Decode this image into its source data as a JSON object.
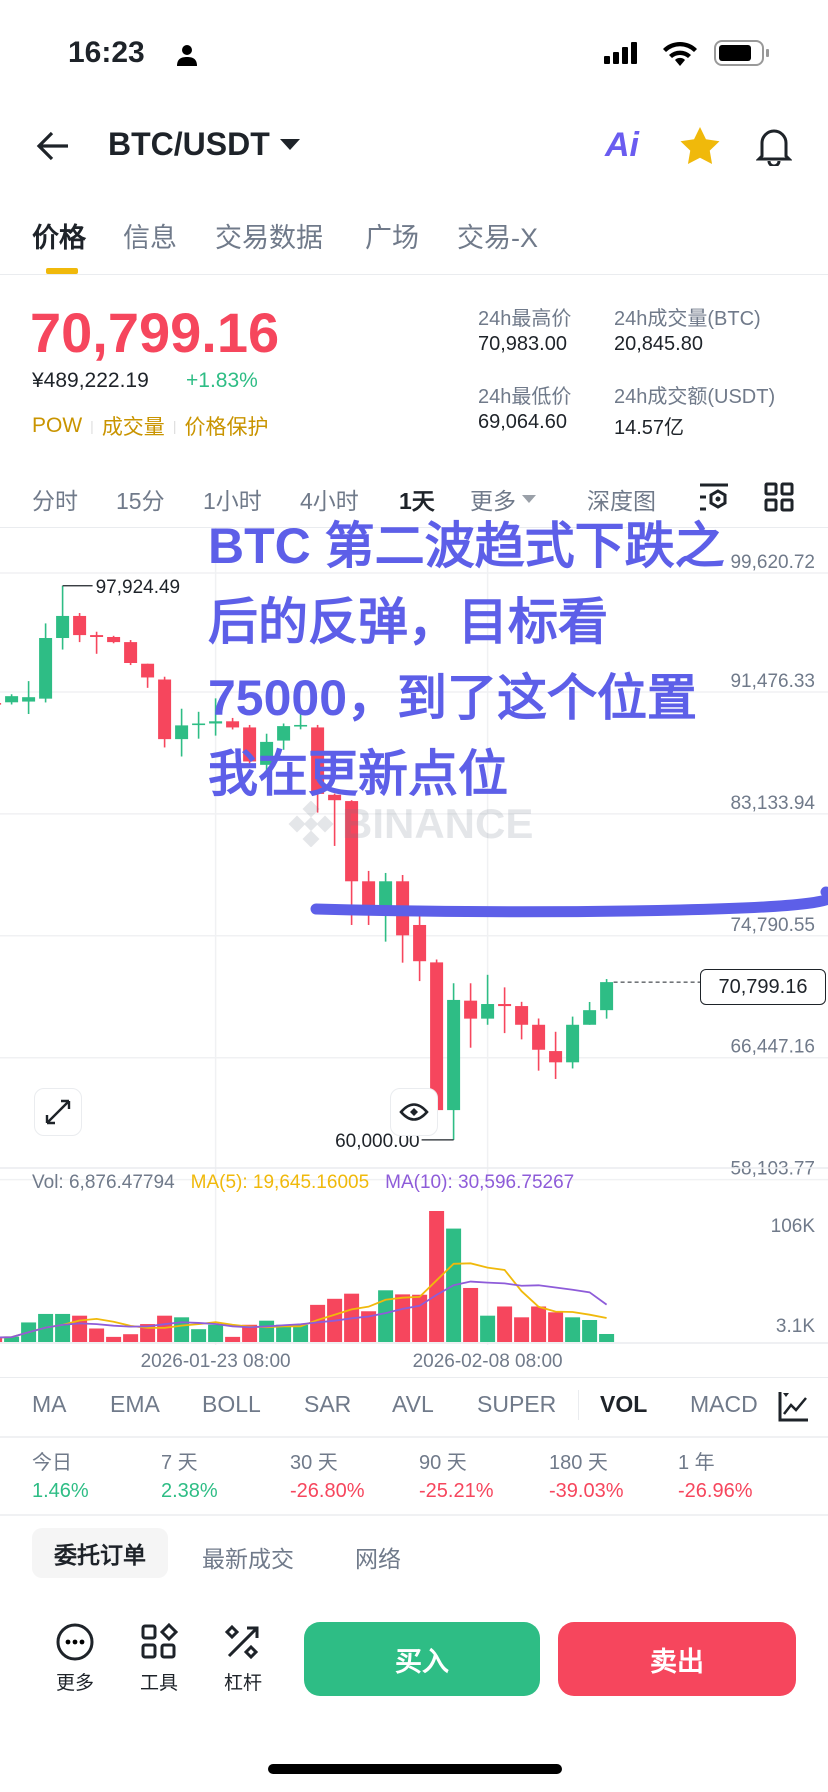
{
  "status_bar": {
    "time": "16:23"
  },
  "header": {
    "pair": "BTC/USDT",
    "ai_label": "Ai"
  },
  "tabs": [
    {
      "label": "价格",
      "active": true
    },
    {
      "label": "信息"
    },
    {
      "label": "交易数据"
    },
    {
      "label": "广场"
    },
    {
      "label": "交易-X"
    }
  ],
  "ticker": {
    "price": "70,799.16",
    "cny_price": "¥489,222.19",
    "change": "+1.83%",
    "tags": [
      "POW",
      "成交量",
      "价格保护"
    ],
    "stats": [
      {
        "label": "24h最高价",
        "value": "70,983.00"
      },
      {
        "label": "24h成交量(BTC)",
        "value": "20,845.80"
      },
      {
        "label": "24h最低价",
        "value": "69,064.60"
      },
      {
        "label": "24h成交额(USDT)",
        "value": "14.57亿"
      }
    ]
  },
  "intervals": [
    {
      "label": "分时"
    },
    {
      "label": "15分"
    },
    {
      "label": "1小时"
    },
    {
      "label": "4小时"
    },
    {
      "label": "1天",
      "active": true
    },
    {
      "label": "更多"
    },
    {
      "label": "深度图"
    }
  ],
  "chart_data": {
    "type": "candlestick",
    "y_axis_labels": [
      "99,620.72",
      "91,476.33",
      "83,133.94",
      "74,790.55",
      "66,447.16",
      "58,103.77"
    ],
    "y_axis_values": [
      99620.72,
      91476.33,
      83133.94,
      74790.55,
      66447.16,
      58103.77
    ],
    "high_marker": "97,924.49",
    "low_marker": "60,000.00",
    "last_price_tag": "70,799.16",
    "watermark": "BINANCE",
    "candles_ohlcv": [
      [
        89900,
        90050,
        89800,
        89850,
        3800
      ],
      [
        89950,
        90500,
        89800,
        90370,
        4600
      ],
      [
        90000,
        91400,
        89150,
        90300,
        16800
      ],
      [
        90200,
        95350,
        89940,
        94350,
        24100
      ],
      [
        94350,
        97924.49,
        93560,
        95860,
        24100
      ],
      [
        95860,
        96060,
        94070,
        94550,
        22600
      ],
      [
        94550,
        94780,
        93270,
        94420,
        11600
      ],
      [
        94420,
        94500,
        93990,
        94070,
        4400
      ],
      [
        94070,
        94210,
        92500,
        92640,
        6700
      ],
      [
        92590,
        92590,
        90940,
        91650,
        15400
      ],
      [
        91510,
        91700,
        86860,
        87430,
        22600
      ],
      [
        87430,
        89510,
        86240,
        88370,
        21200
      ],
      [
        88400,
        89300,
        87460,
        88500,
        11000
      ],
      [
        88500,
        90220,
        87670,
        88650,
        14800
      ],
      [
        88650,
        88880,
        88090,
        88230,
        4400
      ],
      [
        88230,
        88400,
        85500,
        85900,
        14800
      ],
      [
        85670,
        87800,
        85000,
        87240,
        18300
      ],
      [
        87330,
        88500,
        86700,
        88320,
        14800
      ],
      [
        88300,
        89500,
        88100,
        88400,
        14800
      ],
      [
        88230,
        88400,
        82400,
        83680,
        31900
      ],
      [
        83620,
        83700,
        80120,
        83250,
        37100
      ],
      [
        83190,
        83250,
        74710,
        77700,
        41500
      ],
      [
        77700,
        78410,
        74710,
        75990,
        26400
      ],
      [
        75990,
        78270,
        73570,
        77700,
        44400
      ],
      [
        77700,
        78130,
        72130,
        74000,
        40900
      ],
      [
        74710,
        75850,
        70870,
        72230,
        40600
      ],
      [
        72150,
        72350,
        62040,
        62040,
        112500
      ],
      [
        62040,
        70720,
        60000,
        69580,
        97400
      ],
      [
        69530,
        70720,
        66310,
        68300,
        46400
      ],
      [
        68300,
        71300,
        67880,
        69300,
        22600
      ],
      [
        69300,
        70440,
        67310,
        69160,
        30500
      ],
      [
        69160,
        69450,
        66880,
        67880,
        21200
      ],
      [
        67880,
        68310,
        64740,
        66170,
        30500
      ],
      [
        66080,
        67400,
        64170,
        65310,
        25500
      ],
      [
        65310,
        68440,
        64890,
        67880,
        21200
      ],
      [
        67880,
        69440,
        67880,
        68880,
        18900
      ],
      [
        68880,
        71010,
        68300,
        70799.16,
        6876.47794
      ]
    ],
    "x_ticks": [
      {
        "label": "2026-01-23 08:00",
        "candle": 13
      },
      {
        "label": "2026-02-08 08:00",
        "candle": 29
      }
    ],
    "volume": {
      "vol_label": "Vol: 6,876.47794",
      "ma5_label": "MA(5): 19,645.16005",
      "ma10_label": "MA(10): 30,596.75267",
      "axis_labels": [
        "106K",
        "3.1K"
      ],
      "ma5_color": "#F0B90B",
      "ma10_color": "#8E5CD9"
    },
    "colors": {
      "up": "#2EBD85",
      "down": "#F6465D"
    }
  },
  "annotation": {
    "lines": [
      "BTC 第二波趋式下跌之",
      "后的反弹，目标看",
      "75000，到了这个位置",
      "我在更新点位"
    ],
    "color": "#5D5FE8",
    "marked_level": 75000
  },
  "indicators": [
    {
      "label": "MA"
    },
    {
      "label": "EMA"
    },
    {
      "label": "BOLL"
    },
    {
      "label": "SAR"
    },
    {
      "label": "AVL"
    },
    {
      "label": "SUPER"
    },
    {
      "label": "VOL",
      "active": true
    },
    {
      "label": "MACD"
    }
  ],
  "performance": [
    {
      "label": "今日",
      "value": "1.46%",
      "dir": "up"
    },
    {
      "label": "7 天",
      "value": "2.38%",
      "dir": "up"
    },
    {
      "label": "30 天",
      "value": "-26.80%",
      "dir": "down"
    },
    {
      "label": "90 天",
      "value": "-25.21%",
      "dir": "down"
    },
    {
      "label": "180 天",
      "value": "-39.03%",
      "dir": "down"
    },
    {
      "label": "1 年",
      "value": "-26.96%",
      "dir": "down"
    }
  ],
  "order_tabs": [
    {
      "label": "委托订单",
      "active": true
    },
    {
      "label": "最新成交"
    },
    {
      "label": "网络"
    }
  ],
  "bottom_bar": {
    "tools": [
      {
        "label": "更多",
        "icon": "more-icon"
      },
      {
        "label": "工具",
        "icon": "tools-icon"
      },
      {
        "label": "杠杆",
        "icon": "leverage-icon"
      }
    ],
    "buy_label": "买入",
    "sell_label": "卖出"
  }
}
